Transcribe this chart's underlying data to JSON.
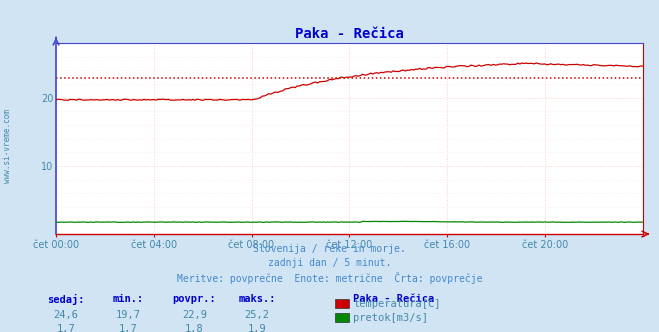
{
  "title": "Paka - Rečica",
  "bg_color": "#d0e4f4",
  "plot_bg_color": "#ffffff",
  "grid_color_h": "#ffcccc",
  "grid_color_v": "#ffcccc",
  "ylim": [
    0,
    28
  ],
  "yticks": [
    10,
    20
  ],
  "xlabel_ticks": [
    "čet 00:00",
    "čet 04:00",
    "čet 08:00",
    "čet 12:00",
    "čet 16:00",
    "čet 20:00"
  ],
  "n_points": 288,
  "temp_avg": 22.9,
  "avg_line_color": "#cc0000",
  "temp_line_color": "#cc0000",
  "flow_line_color": "#008800",
  "yaxis_color": "#4444cc",
  "xaxis_color": "#cc0000",
  "title_color": "#0000cc",
  "label_color": "#4488aa",
  "watermark_color": "#4488aa",
  "subtitle_color": "#4488cc",
  "subtitle_lines": [
    "Slovenija / reke in morje.",
    "zadnji dan / 5 minut.",
    "Meritve: povprečne  Enote: metrične  Črta: povprečje"
  ],
  "legend_title": "Paka - Rečica",
  "legend_items": [
    "temperatura[C]",
    "pretok[m3/s]"
  ],
  "legend_colors": [
    "#cc0000",
    "#008800"
  ],
  "table_headers": [
    "sedaj:",
    "min.:",
    "povpr.:",
    "maks.:"
  ],
  "table_row1": [
    "24,6",
    "19,7",
    "22,9",
    "25,2"
  ],
  "table_row2": [
    "1,7",
    "1,7",
    "1,8",
    "1,9"
  ],
  "watermark": "www.si-vreme.com"
}
